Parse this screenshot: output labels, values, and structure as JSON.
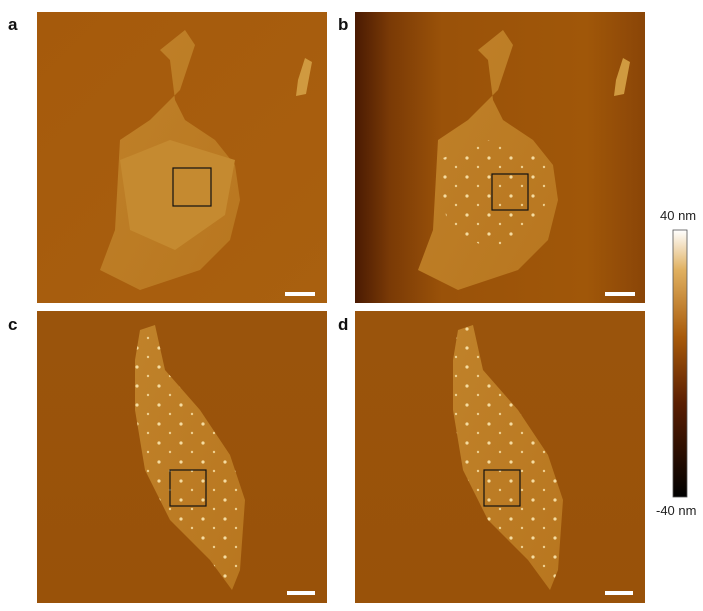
{
  "panels": [
    {
      "label": "a"
    },
    {
      "label": "b"
    },
    {
      "label": "c"
    },
    {
      "label": "d"
    }
  ],
  "colorbar": {
    "max_label": "40 nm",
    "min_label": "-40 nm"
  }
}
